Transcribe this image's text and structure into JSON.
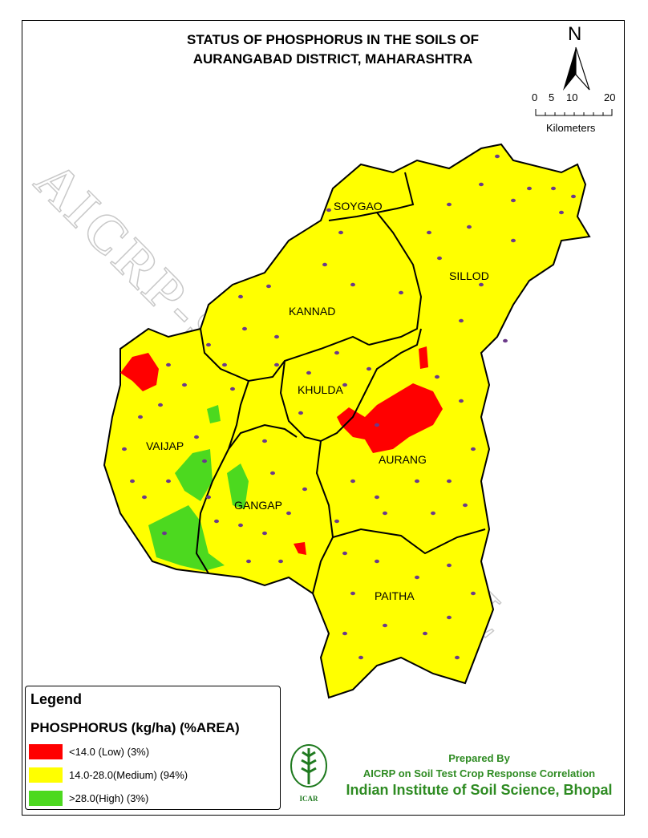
{
  "title_line1": "STATUS OF PHOSPHORUS IN THE SOILS OF",
  "title_line2": "AURANGABAD DISTRICT, MAHARASHTRA",
  "north_label": "N",
  "scale": {
    "ticks": [
      "0",
      "5",
      "10",
      "20"
    ],
    "unit": "Kilometers"
  },
  "watermark": "AICRP-STCR, BHOPAL",
  "talukas": [
    "SOYGAO",
    "SILLOD",
    "KANNAD",
    "KHULDA",
    "VAIJAP",
    "GANGAP",
    "AURANG",
    "PAITHA"
  ],
  "legend": {
    "heading": "Legend",
    "subtitle": "PHOSPHORUS (kg/ha) (%AREA)",
    "classes": [
      {
        "label": "<14.0 (Low) (3%)",
        "color": "#ff0000",
        "area_percent": 3
      },
      {
        "label": "14.0-28.0(Medium) (94%)",
        "color": "#ffff00",
        "area_percent": 94
      },
      {
        "label": ">28.0(High) (3%)",
        "color": "#4cd91f",
        "area_percent": 3
      }
    ]
  },
  "credit": {
    "line1": "Prepared By",
    "line2": "AICRP on Soil Test Crop Response Correlation",
    "line3": "Indian Institute of Soil Science, Bhopal",
    "logo_text": "भाकृअनुप ICAR"
  },
  "colors": {
    "sample_dot": "#6b3a8a",
    "credit_text": "#2e8b22"
  }
}
